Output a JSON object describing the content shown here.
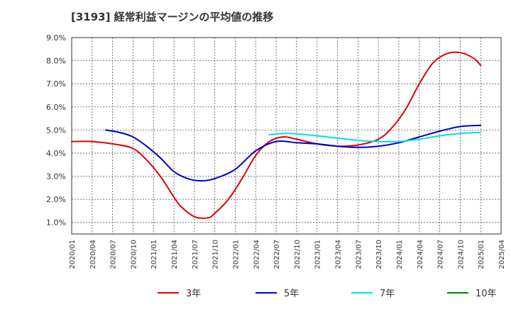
{
  "chart_data": {
    "type": "line",
    "title": "[3193]  経常利益マージンの平均値の推移",
    "xlabel": "",
    "ylabel": "",
    "ylim": [
      0.5,
      9.0
    ],
    "xlim": [
      "2020/01",
      "2025/04"
    ],
    "y_ticks": [
      "1.0%",
      "2.0%",
      "3.0%",
      "4.0%",
      "5.0%",
      "6.0%",
      "7.0%",
      "8.0%",
      "9.0%"
    ],
    "x_ticks": [
      "2020/01",
      "2020/04",
      "2020/07",
      "2020/10",
      "2021/01",
      "2021/04",
      "2021/07",
      "2021/10",
      "2022/01",
      "2022/04",
      "2022/07",
      "2022/10",
      "2023/01",
      "2023/04",
      "2023/07",
      "2023/10",
      "2024/01",
      "2024/04",
      "2024/07",
      "2024/10",
      "2025/01",
      "2025/04"
    ],
    "grid": true,
    "legend_position": "bottom",
    "series": [
      {
        "name": "3年",
        "color": "#e00000",
        "x": [
          "2020/01",
          "2020/04",
          "2020/07",
          "2020/10",
          "2020/12",
          "2021/02",
          "2021/04",
          "2021/05",
          "2021/07",
          "2021/09",
          "2021/10",
          "2021/12",
          "2022/02",
          "2022/04",
          "2022/06",
          "2022/08",
          "2022/10",
          "2023/01",
          "2023/04",
          "2023/07",
          "2023/10",
          "2023/12",
          "2024/02",
          "2024/04",
          "2024/06",
          "2024/08",
          "2024/10",
          "2024/12",
          "2025/01"
        ],
        "values": [
          4.5,
          4.5,
          4.4,
          4.2,
          3.7,
          3.0,
          2.1,
          1.7,
          1.25,
          1.2,
          1.4,
          2.0,
          2.9,
          3.9,
          4.5,
          4.7,
          4.6,
          4.4,
          4.3,
          4.35,
          4.6,
          5.1,
          5.9,
          7.0,
          7.9,
          8.3,
          8.35,
          8.1,
          7.8
        ]
      },
      {
        "name": "5年",
        "color": "#0000c8",
        "x": [
          "2020/06",
          "2020/08",
          "2020/10",
          "2020/12",
          "2021/02",
          "2021/04",
          "2021/06",
          "2021/08",
          "2021/10",
          "2022/01",
          "2022/04",
          "2022/07",
          "2022/10",
          "2023/01",
          "2023/04",
          "2023/07",
          "2023/10",
          "2024/01",
          "2024/04",
          "2024/07",
          "2024/10",
          "2025/01"
        ],
        "values": [
          5.0,
          4.9,
          4.7,
          4.3,
          3.8,
          3.2,
          2.9,
          2.8,
          2.9,
          3.3,
          4.1,
          4.5,
          4.45,
          4.4,
          4.3,
          4.25,
          4.3,
          4.45,
          4.7,
          4.95,
          5.15,
          5.2
        ]
      },
      {
        "name": "7年",
        "color": "#00e0e0",
        "x": [
          "2022/06",
          "2022/09",
          "2023/01",
          "2023/04",
          "2023/07",
          "2023/10",
          "2024/01",
          "2024/04",
          "2024/07",
          "2024/10",
          "2025/01"
        ],
        "values": [
          4.8,
          4.85,
          4.75,
          4.65,
          4.55,
          4.5,
          4.5,
          4.6,
          4.75,
          4.85,
          4.9
        ]
      },
      {
        "name": "10年",
        "color": "#008000",
        "x": [],
        "values": []
      }
    ]
  }
}
